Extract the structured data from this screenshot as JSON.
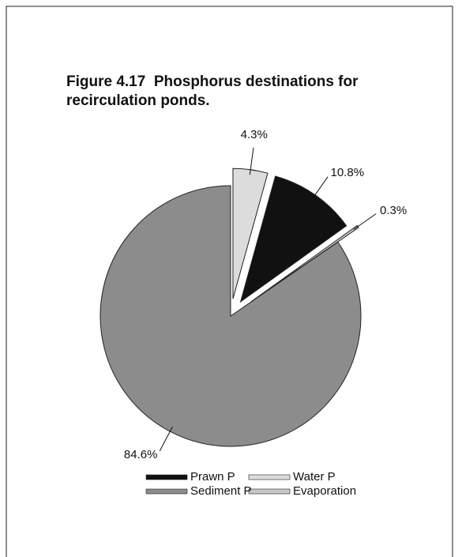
{
  "chart_data": {
    "type": "pie",
    "title": "Figure 4.17  Phosphorus destinations for recirculation ponds.",
    "categories": [
      "Water P",
      "Prawn P",
      "Evaporation",
      "Sediment P"
    ],
    "values": [
      4.3,
      10.8,
      0.3,
      84.6
    ],
    "value_labels": [
      "4.3%",
      "10.8%",
      "0.3%",
      "84.6%"
    ],
    "colors": [
      "#dcdcdc",
      "#111111",
      "#c8c8c8",
      "#8c8c8c"
    ],
    "legend": "bottom"
  }
}
